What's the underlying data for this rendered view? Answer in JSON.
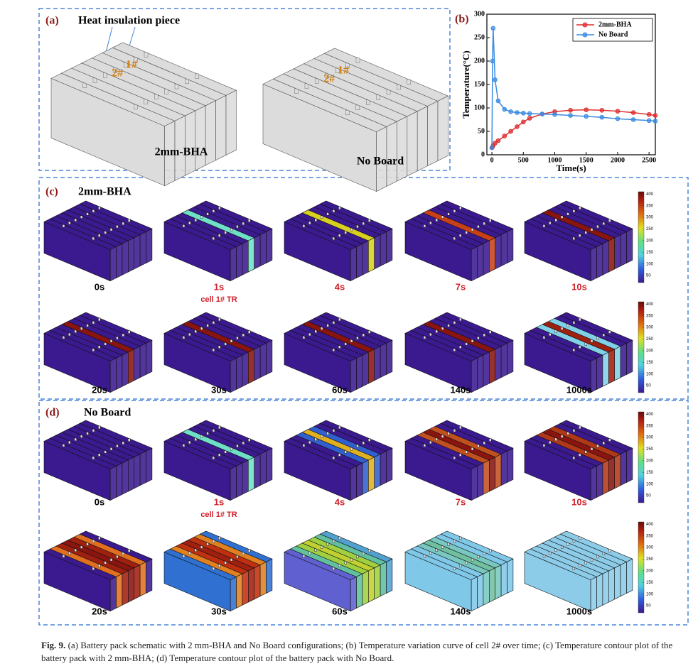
{
  "panel_a": {
    "label": "(a)",
    "annotation": "Heat insulation piece",
    "blocks": [
      {
        "name": "2mm-BHA",
        "cell_labels": [
          "1#",
          "2#"
        ]
      },
      {
        "name": "No Board",
        "cell_labels": [
          "1#",
          "2#"
        ]
      }
    ]
  },
  "chart_data": {
    "type": "line",
    "label": "(b)",
    "x_label": "Time(s)",
    "y_label": "Temperature(°C)",
    "x": [
      0,
      10,
      20,
      50,
      100,
      200,
      300,
      400,
      500,
      600,
      800,
      1000,
      1250,
      1500,
      1750,
      2000,
      2250,
      2500,
      2600
    ],
    "series": [
      {
        "name": "2mm-BHA",
        "color": "#e03030",
        "values": [
          15,
          17,
          20,
          25,
          30,
          40,
          50,
          60,
          70,
          78,
          87,
          92,
          95,
          96,
          95,
          93,
          90,
          86,
          84
        ]
      },
      {
        "name": "No Board",
        "color": "#3b8be0",
        "values": [
          15,
          200,
          270,
          160,
          115,
          97,
          92,
          90,
          89,
          88,
          87,
          86,
          84,
          82,
          80,
          77,
          75,
          73,
          72
        ]
      }
    ],
    "xlim": [
      -80,
      2600
    ],
    "ylim": [
      0,
      300
    ],
    "xticks": [
      0,
      500,
      1000,
      1500,
      2000,
      2500
    ],
    "yticks": [
      0,
      50,
      100,
      150,
      200,
      250,
      300
    ],
    "legend": "upper right"
  },
  "panel_c": {
    "label": "(c)",
    "name": "2mm-BHA",
    "frames": [
      {
        "time": "0s",
        "color": "#000000"
      },
      {
        "time": "1s",
        "note": "cell 1# TR",
        "color": "#d0202a"
      },
      {
        "time": "4s",
        "color": "#d0202a"
      },
      {
        "time": "7s",
        "color": "#d0202a"
      },
      {
        "time": "10s",
        "color": "#d0202a"
      },
      {
        "time": "20s",
        "color": "#000000"
      },
      {
        "time": "30s",
        "color": "#000000"
      },
      {
        "time": "60s",
        "color": "#000000"
      },
      {
        "time": "140s",
        "color": "#000000"
      },
      {
        "time": "1000s",
        "color": "#000000"
      }
    ]
  },
  "panel_d": {
    "label": "(d)",
    "name": "No Board",
    "frames": [
      {
        "time": "0s",
        "color": "#000000"
      },
      {
        "time": "1s",
        "note": "cell 1# TR",
        "color": "#d0202a"
      },
      {
        "time": "4s",
        "color": "#d0202a"
      },
      {
        "time": "7s",
        "color": "#d0202a"
      },
      {
        "time": "10s",
        "color": "#d0202a"
      },
      {
        "time": "20s",
        "color": "#000000"
      },
      {
        "time": "30s",
        "color": "#000000"
      },
      {
        "time": "60s",
        "color": "#000000"
      },
      {
        "time": "140s",
        "color": "#000000"
      },
      {
        "time": "1000s",
        "color": "#000000"
      }
    ]
  },
  "colorbar": {
    "range": [
      20,
      410
    ],
    "ticks": [
      50,
      100,
      150,
      200,
      250,
      300,
      350,
      400
    ]
  },
  "caption": {
    "label": "Fig. 9.",
    "text": "(a) Battery pack schematic with 2 mm-BHA and No Board configurations; (b) Temperature variation curve of cell 2# over time; (c) Temperature contour plot of the battery pack with 2 mm-BHA; (d) Temperature contour plot of the battery pack with No Board."
  }
}
